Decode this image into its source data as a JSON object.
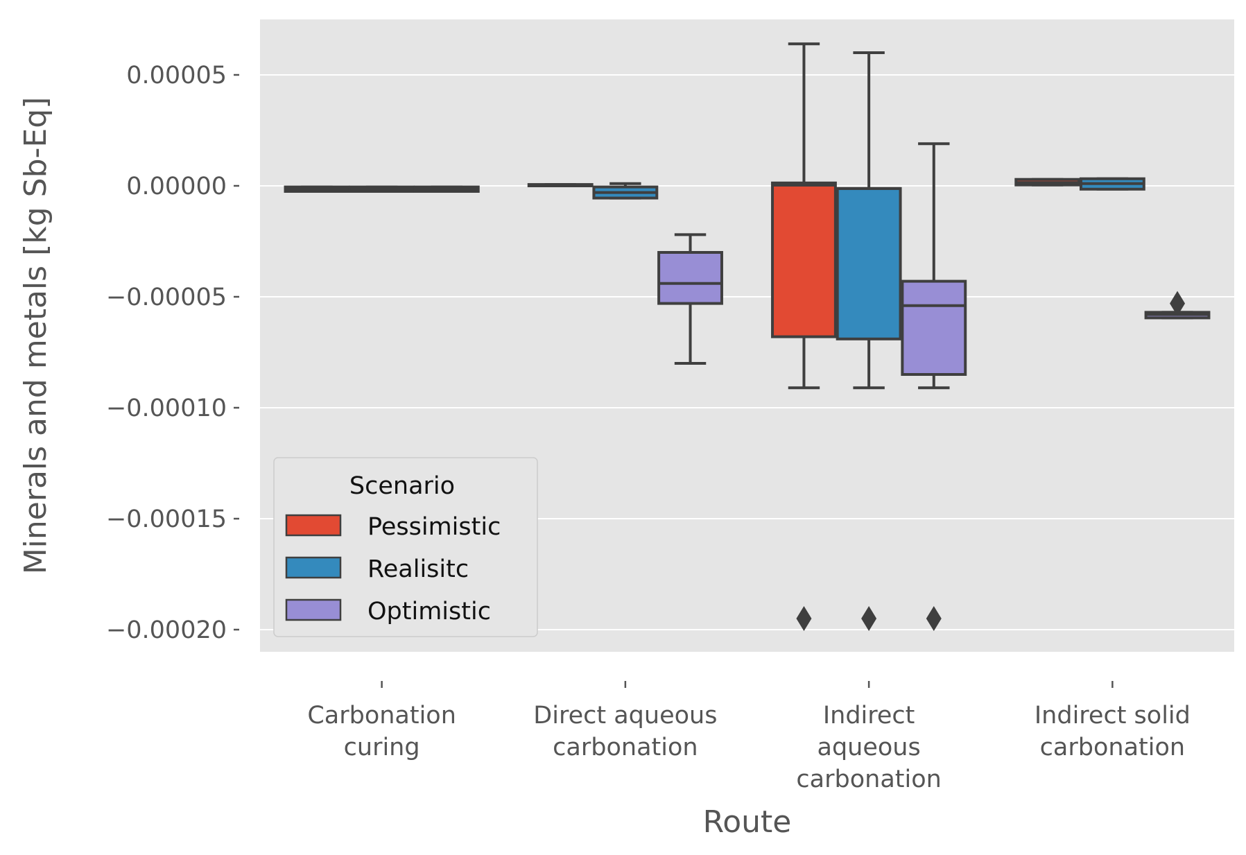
{
  "chart_data": {
    "type": "box",
    "xlabel": "Route",
    "ylabel": "Minerals and metals [kg Sb-Eq]",
    "ylim": [
      -0.00021,
      7.5e-05
    ],
    "yticks": [
      5e-05,
      0.0,
      -5e-05,
      -0.0001,
      -0.00015,
      -0.0002
    ],
    "ytick_labels": [
      "0.00005",
      "0.00000",
      "−0.00005",
      "−0.00010",
      "−0.00015",
      "−0.00020"
    ],
    "grid": true,
    "categories": [
      [
        "Carbonation",
        "curing"
      ],
      [
        "Direct aqueous",
        "carbonation"
      ],
      [
        "Indirect",
        "aqueous",
        "carbonation"
      ],
      [
        "Indirect solid",
        "carbonation"
      ]
    ],
    "legend": {
      "title": "Scenario",
      "position": "lower-left"
    },
    "series": [
      {
        "name": "Pessimistic",
        "color": "#E24A33",
        "boxes": [
          {
            "whislo": -2.5e-06,
            "q1": -2.5e-06,
            "med": -1.5e-06,
            "q3": -5e-07,
            "whishi": -5e-07,
            "fliers": []
          },
          {
            "whislo": 0.0,
            "q1": 0.0,
            "med": 3e-07,
            "q3": 6e-07,
            "whishi": 6e-07,
            "fliers": []
          },
          {
            "whislo": -9.1e-05,
            "q1": -6.8e-05,
            "med": 3e-07,
            "q3": 1.3e-06,
            "whishi": 6.4e-05,
            "fliers": [
              -0.000195
            ]
          },
          {
            "whislo": 4e-07,
            "q1": 4e-07,
            "med": 1.5e-06,
            "q3": 2.9e-06,
            "whishi": 2.9e-06,
            "fliers": []
          }
        ]
      },
      {
        "name": "Realisitc",
        "color": "#348ABD",
        "boxes": [
          {
            "whislo": -2.5e-06,
            "q1": -2.5e-06,
            "med": -1.5e-06,
            "q3": -5e-07,
            "whishi": -5e-07,
            "fliers": []
          },
          {
            "whislo": -5.5e-06,
            "q1": -5.5e-06,
            "med": -3e-06,
            "q3": -5e-07,
            "whishi": 1e-06,
            "fliers": []
          },
          {
            "whislo": -9.1e-05,
            "q1": -6.9e-05,
            "med": -1.2e-06,
            "q3": -1.2e-06,
            "whishi": 6e-05,
            "fliers": [
              -0.000195
            ]
          },
          {
            "whislo": -1.5e-06,
            "q1": -1.5e-06,
            "med": 1e-06,
            "q3": 3.2e-06,
            "whishi": 3.2e-06,
            "fliers": []
          }
        ]
      },
      {
        "name": "Optimistic",
        "color": "#988ED5",
        "boxes": [
          {
            "whislo": -2.5e-06,
            "q1": -2.5e-06,
            "med": -1.5e-06,
            "q3": -5e-07,
            "whishi": -5e-07,
            "fliers": []
          },
          {
            "whislo": -8e-05,
            "q1": -5.3e-05,
            "med": -4.4e-05,
            "q3": -3e-05,
            "whishi": -2.2e-05,
            "fliers": []
          },
          {
            "whislo": -9.1e-05,
            "q1": -8.5e-05,
            "med": -5.4e-05,
            "q3": -4.3e-05,
            "whishi": 1.9e-05,
            "fliers": [
              -0.000195
            ]
          },
          {
            "whislo": -5.95e-05,
            "q1": -5.95e-05,
            "med": -5.8e-05,
            "q3": -5.7e-05,
            "whishi": -5.7e-05,
            "fliers": [
              -5.3e-05
            ]
          }
        ]
      }
    ]
  }
}
